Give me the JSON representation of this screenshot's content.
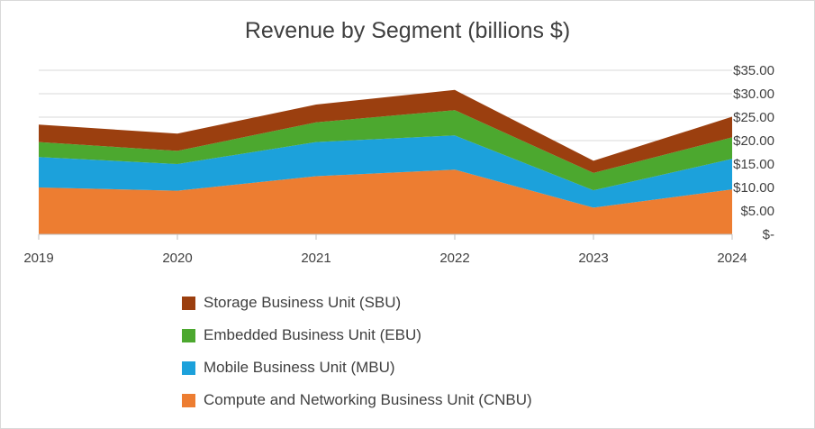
{
  "chart_data": {
    "type": "area",
    "stacked": true,
    "title": "Revenue by Segment (billions $)",
    "categories": [
      "2019",
      "2020",
      "2021",
      "2022",
      "2023",
      "2024"
    ],
    "y_axis": {
      "position": "right",
      "ylim": [
        0,
        35
      ],
      "ticks": [
        0,
        5,
        10,
        15,
        20,
        25,
        30,
        35
      ],
      "tick_labels": [
        "$-",
        "$5.00",
        "$10.00",
        "$15.00",
        "$20.00",
        "$25.00",
        "$30.00",
        "$35.00"
      ]
    },
    "grid": true,
    "legend_position": "bottom",
    "series": [
      {
        "name": "Compute and Networking Business Unit (CNBU)",
        "color": "#ED7D31",
        "values": [
          10.0,
          9.3,
          12.4,
          13.8,
          5.7,
          9.6
        ]
      },
      {
        "name": "Mobile Business Unit (MBU)",
        "color": "#1CA1DB",
        "values": [
          6.5,
          5.7,
          7.3,
          7.3,
          3.7,
          6.5
        ]
      },
      {
        "name": "Embedded Business Unit (EBU)",
        "color": "#4CA82F",
        "values": [
          3.2,
          2.8,
          4.2,
          5.4,
          3.7,
          4.6
        ]
      },
      {
        "name": "Storage Business Unit (SBU)",
        "color": "#9B3F0F",
        "values": [
          3.7,
          3.7,
          3.8,
          4.3,
          2.6,
          4.4
        ]
      }
    ]
  }
}
